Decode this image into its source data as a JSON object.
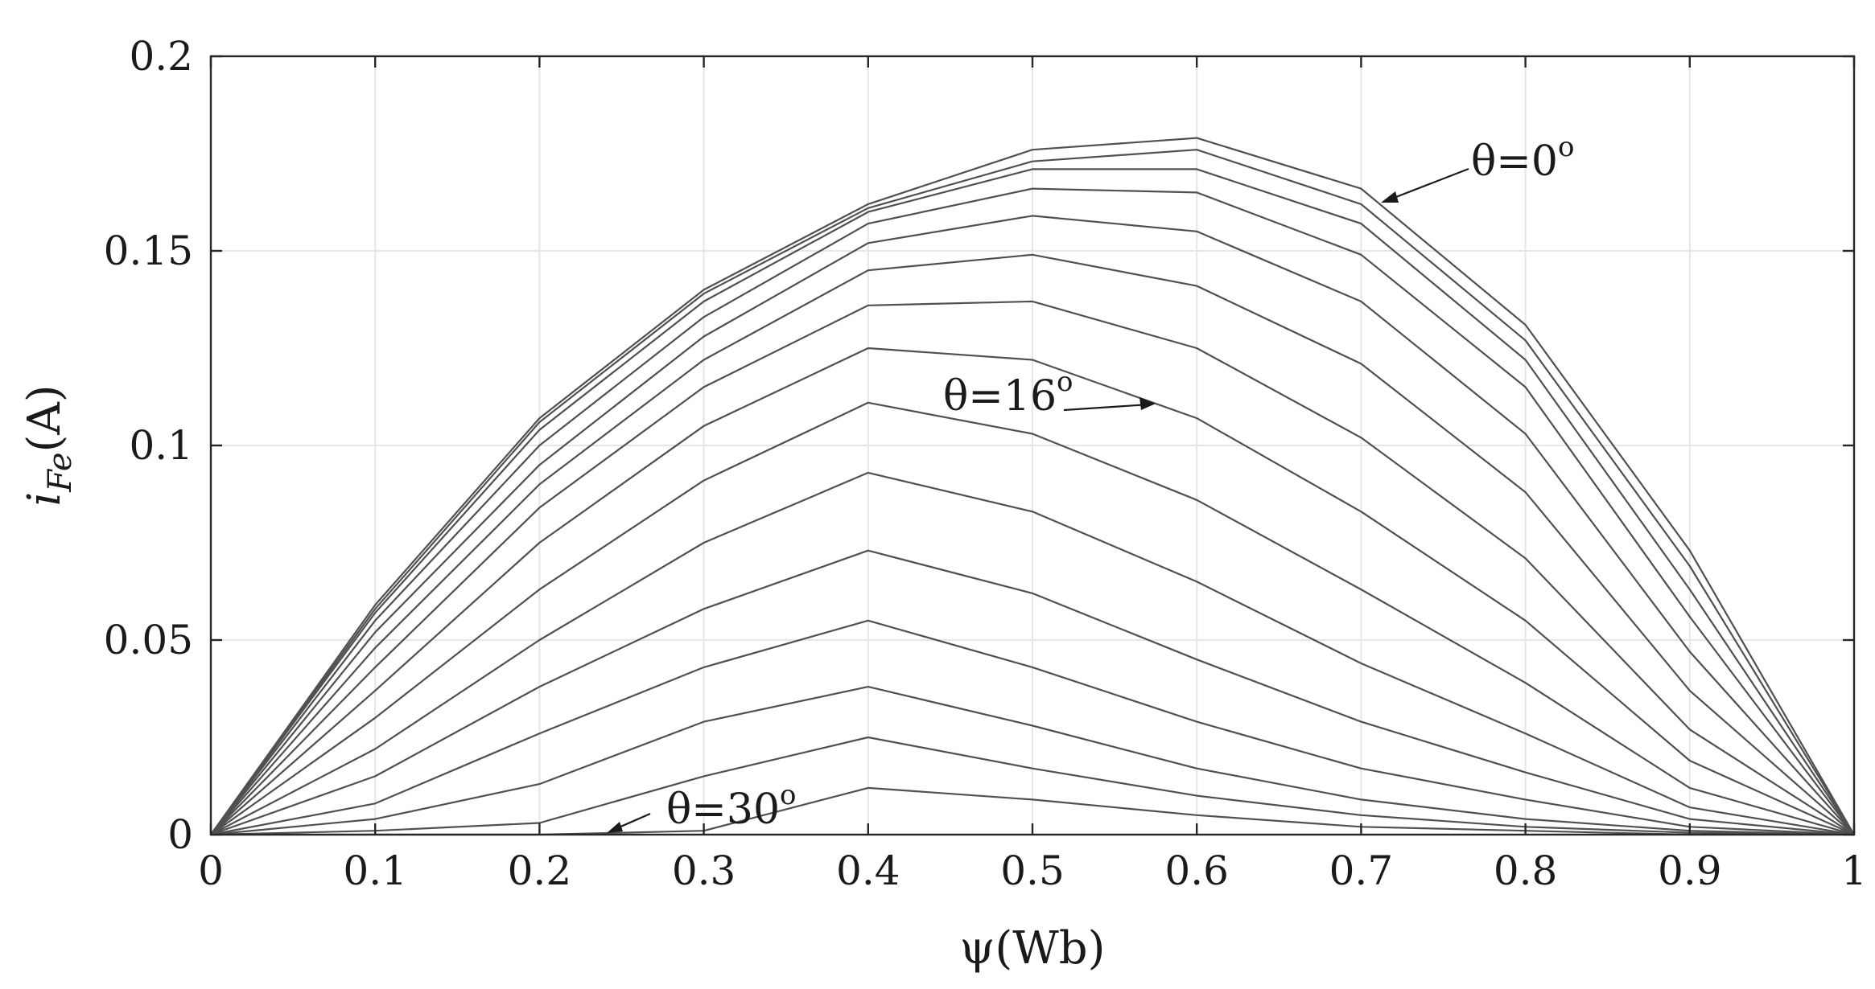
{
  "chart_data": {
    "type": "line",
    "title": "",
    "xlabel": "ψ(Wb)",
    "ylabel_main": "i",
    "ylabel_sub": "Fe",
    "ylabel_unit": "(A)",
    "xlim": [
      0,
      1
    ],
    "ylim": [
      0,
      0.2
    ],
    "grid": true,
    "x": [
      0,
      0.1,
      0.2,
      0.3,
      0.4,
      0.5,
      0.6,
      0.7,
      0.8,
      0.9,
      1.0
    ],
    "x_ticks": [
      "0",
      "0.1",
      "0.2",
      "0.3",
      "0.4",
      "0.5",
      "0.6",
      "0.7",
      "0.8",
      "0.9",
      "1"
    ],
    "y_ticks": [
      "0",
      "0.05",
      "0.1",
      "0.15",
      "0.2"
    ],
    "x_tick_values": [
      0,
      0.1,
      0.2,
      0.3,
      0.4,
      0.5,
      0.6,
      0.7,
      0.8,
      0.9,
      1.0
    ],
    "y_tick_values": [
      0,
      0.05,
      0.1,
      0.15,
      0.2
    ],
    "series": [
      {
        "values": [
          0,
          0.059,
          0.107,
          0.14,
          0.162,
          0.176,
          0.179,
          0.166,
          0.131,
          0.073,
          0
        ]
      },
      {
        "values": [
          0,
          0.058,
          0.106,
          0.139,
          0.161,
          0.173,
          0.176,
          0.162,
          0.127,
          0.069,
          0
        ]
      },
      {
        "values": [
          0,
          0.057,
          0.104,
          0.137,
          0.16,
          0.171,
          0.171,
          0.157,
          0.122,
          0.063,
          0
        ]
      },
      {
        "values": [
          0,
          0.055,
          0.1,
          0.133,
          0.157,
          0.166,
          0.165,
          0.149,
          0.115,
          0.056,
          0
        ]
      },
      {
        "values": [
          0,
          0.052,
          0.095,
          0.128,
          0.152,
          0.159,
          0.155,
          0.137,
          0.103,
          0.047,
          0
        ]
      },
      {
        "values": [
          0,
          0.048,
          0.09,
          0.122,
          0.145,
          0.149,
          0.141,
          0.121,
          0.088,
          0.037,
          0
        ]
      },
      {
        "values": [
          0,
          0.043,
          0.084,
          0.115,
          0.136,
          0.137,
          0.125,
          0.102,
          0.071,
          0.027,
          0
        ]
      },
      {
        "values": [
          0,
          0.037,
          0.075,
          0.105,
          0.125,
          0.122,
          0.107,
          0.083,
          0.055,
          0.019,
          0
        ]
      },
      {
        "values": [
          0,
          0.03,
          0.063,
          0.091,
          0.111,
          0.103,
          0.086,
          0.063,
          0.039,
          0.012,
          0
        ]
      },
      {
        "values": [
          0,
          0.022,
          0.05,
          0.075,
          0.093,
          0.083,
          0.065,
          0.044,
          0.026,
          0.007,
          0
        ]
      },
      {
        "values": [
          0,
          0.015,
          0.038,
          0.058,
          0.073,
          0.062,
          0.045,
          0.029,
          0.016,
          0.004,
          0
        ]
      },
      {
        "values": [
          0,
          0.008,
          0.026,
          0.043,
          0.055,
          0.043,
          0.029,
          0.017,
          0.009,
          0.002,
          0
        ]
      },
      {
        "values": [
          0,
          0.004,
          0.013,
          0.029,
          0.038,
          0.028,
          0.017,
          0.009,
          0.004,
          0.001,
          0
        ]
      },
      {
        "values": [
          0,
          0.001,
          0.003,
          0.015,
          0.025,
          0.017,
          0.01,
          0.005,
          0.002,
          0.0005,
          0
        ]
      },
      {
        "values": [
          0,
          0.0,
          0.0,
          0.001,
          0.012,
          0.009,
          0.005,
          0.002,
          0.001,
          0.0,
          0
        ]
      }
    ],
    "annotations": [
      {
        "theta": "θ=0",
        "sup": "o"
      },
      {
        "theta": "θ=16",
        "sup": "o"
      },
      {
        "theta": "θ=30",
        "sup": "o"
      }
    ],
    "colors": {
      "line": "#505050",
      "grid": "#e6e6e6",
      "frame": "#262626"
    }
  }
}
